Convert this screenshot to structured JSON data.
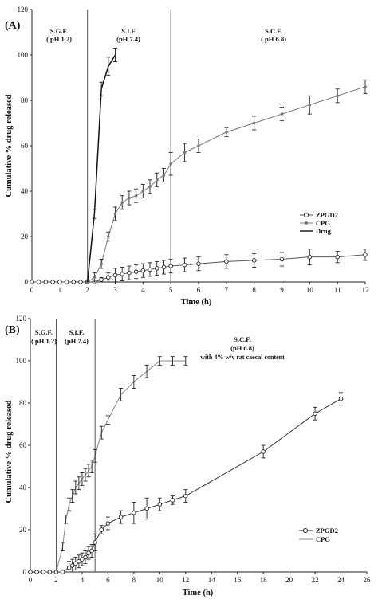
{
  "chart_data": [
    {
      "panel_label": "(A)",
      "type": "line",
      "xlabel": "Time (h)",
      "ylabel": "Cumulative % drug released",
      "xlim": [
        0,
        12
      ],
      "ylim": [
        0,
        120
      ],
      "xticks": [
        "0",
        "1",
        "2",
        "3",
        "4",
        "5",
        "6",
        "7",
        "8",
        "9",
        "10",
        "11",
        "12"
      ],
      "yticks": [
        "0",
        "20",
        "40",
        "60",
        "80",
        "100",
        "120"
      ],
      "phase_lines": [
        2,
        5
      ],
      "phases": [
        {
          "line1": "S.G.F.",
          "line2": "( pH 1.2)"
        },
        {
          "line1": "S.I.F",
          "line2": "(pH 7.4)"
        },
        {
          "line1": "S.C.F.",
          "line2": "( pH 6.8)"
        }
      ],
      "legend": [
        "ZPGD2",
        "CPG",
        "Drug"
      ],
      "legend_position": "right, mid-lower",
      "series": [
        {
          "name": "ZPGD2",
          "marker": "open-circle",
          "color": "#555555",
          "x": [
            0,
            0.25,
            0.5,
            0.75,
            1,
            1.25,
            1.5,
            1.75,
            2,
            2.25,
            2.5,
            2.75,
            3,
            3.25,
            3.5,
            3.75,
            4,
            4.25,
            4.5,
            4.75,
            5,
            5.5,
            6,
            7,
            8,
            9,
            10,
            11,
            12
          ],
          "y": [
            0,
            0,
            0,
            0,
            0,
            0,
            0,
            0,
            0,
            0,
            1,
            2,
            3,
            3.5,
            4,
            4.5,
            5,
            5.5,
            6,
            6.5,
            7,
            7.5,
            8,
            9,
            9.5,
            10,
            11,
            11,
            12
          ],
          "err": [
            0,
            0,
            0,
            0,
            0,
            0,
            0,
            0,
            0,
            0,
            1,
            2,
            3,
            3,
            3,
            3,
            3,
            3,
            3,
            3,
            3,
            3,
            3,
            3,
            3,
            3,
            3.5,
            2.5,
            2.5
          ]
        },
        {
          "name": "CPG",
          "marker": "filled-dot",
          "color": "#777777",
          "x": [
            2,
            2.25,
            2.5,
            2.75,
            3,
            3.25,
            3.5,
            3.75,
            4,
            4.25,
            4.5,
            4.75,
            5,
            5.5,
            6,
            7,
            8,
            9,
            10,
            11,
            12
          ],
          "y": [
            0,
            2,
            8,
            20,
            30,
            35,
            37,
            38,
            40,
            42,
            45,
            47,
            52,
            57,
            60,
            66,
            70,
            74,
            78,
            82,
            86
          ],
          "err": [
            0,
            2,
            2,
            2,
            3,
            3,
            3,
            3,
            3,
            3,
            3,
            3,
            5,
            4,
            3,
            2,
            3,
            3,
            4,
            3,
            3
          ]
        },
        {
          "name": "Drug",
          "marker": "none",
          "color": "#111111",
          "x": [
            2,
            2.25,
            2.5,
            2.75,
            3
          ],
          "y": [
            0,
            30,
            85,
            95,
            100
          ],
          "err": [
            0,
            2,
            3,
            4,
            3
          ]
        }
      ]
    },
    {
      "panel_label": "(B)",
      "type": "line",
      "xlabel": "Time (h)",
      "ylabel": "Cumulative % drug released",
      "xlim": [
        0,
        26
      ],
      "ylim": [
        0,
        120
      ],
      "xticks": [
        "0",
        "2",
        "4",
        "6",
        "8",
        "10",
        "12",
        "14",
        "16",
        "18",
        "20",
        "22",
        "24",
        "26"
      ],
      "yticks": [
        "0",
        "20",
        "40",
        "60",
        "80",
        "100",
        "120"
      ],
      "phase_lines": [
        2,
        5
      ],
      "phases": [
        {
          "line1": "S.G.F.",
          "line2": "( pH 1.2)"
        },
        {
          "line1": "S.I.F.",
          "line2": "(pH 7.4)"
        },
        {
          "line1": "S.C.F.",
          "line2": "(pH 6.8)",
          "line3": "with 4% w/v rat caecal content"
        }
      ],
      "legend": [
        "ZPGD2",
        "CPG"
      ],
      "legend_position": "right, lower",
      "series": [
        {
          "name": "ZPGD2",
          "marker": "open-circle",
          "color": "#333333",
          "x": [
            0,
            0.5,
            1,
            1.5,
            2,
            2.5,
            3,
            3.25,
            3.5,
            3.75,
            4,
            4.25,
            4.5,
            4.75,
            5,
            5.5,
            6,
            7,
            8,
            9,
            10,
            11,
            12,
            18,
            22,
            24
          ],
          "y": [
            0,
            0,
            0,
            0,
            0,
            0,
            2,
            3,
            4,
            5,
            6,
            7,
            9,
            10,
            14,
            20,
            23,
            26,
            28,
            30,
            32,
            34,
            36,
            57,
            75,
            82
          ],
          "err": [
            0,
            0,
            0,
            0,
            0,
            0,
            3,
            3,
            3,
            3,
            3,
            3,
            3,
            3,
            4,
            2,
            3,
            3,
            5,
            5,
            3,
            2,
            3,
            3,
            3,
            3
          ]
        },
        {
          "name": "CPG",
          "marker": "none",
          "color": "#888888",
          "x": [
            2,
            2.5,
            2.75,
            3,
            3.25,
            3.5,
            3.75,
            4,
            4.25,
            4.5,
            4.75,
            5,
            5.5,
            6,
            7,
            8,
            9,
            10,
            11,
            12
          ],
          "y": [
            0,
            12,
            25,
            32,
            36,
            40,
            42,
            44,
            46,
            48,
            50,
            55,
            66,
            72,
            84,
            90,
            95,
            100,
            100,
            100
          ],
          "err": [
            0,
            2,
            2,
            3,
            3,
            3,
            3,
            3,
            3,
            3,
            3,
            3,
            3,
            2,
            3,
            3,
            3,
            2,
            2,
            2
          ]
        }
      ]
    }
  ]
}
